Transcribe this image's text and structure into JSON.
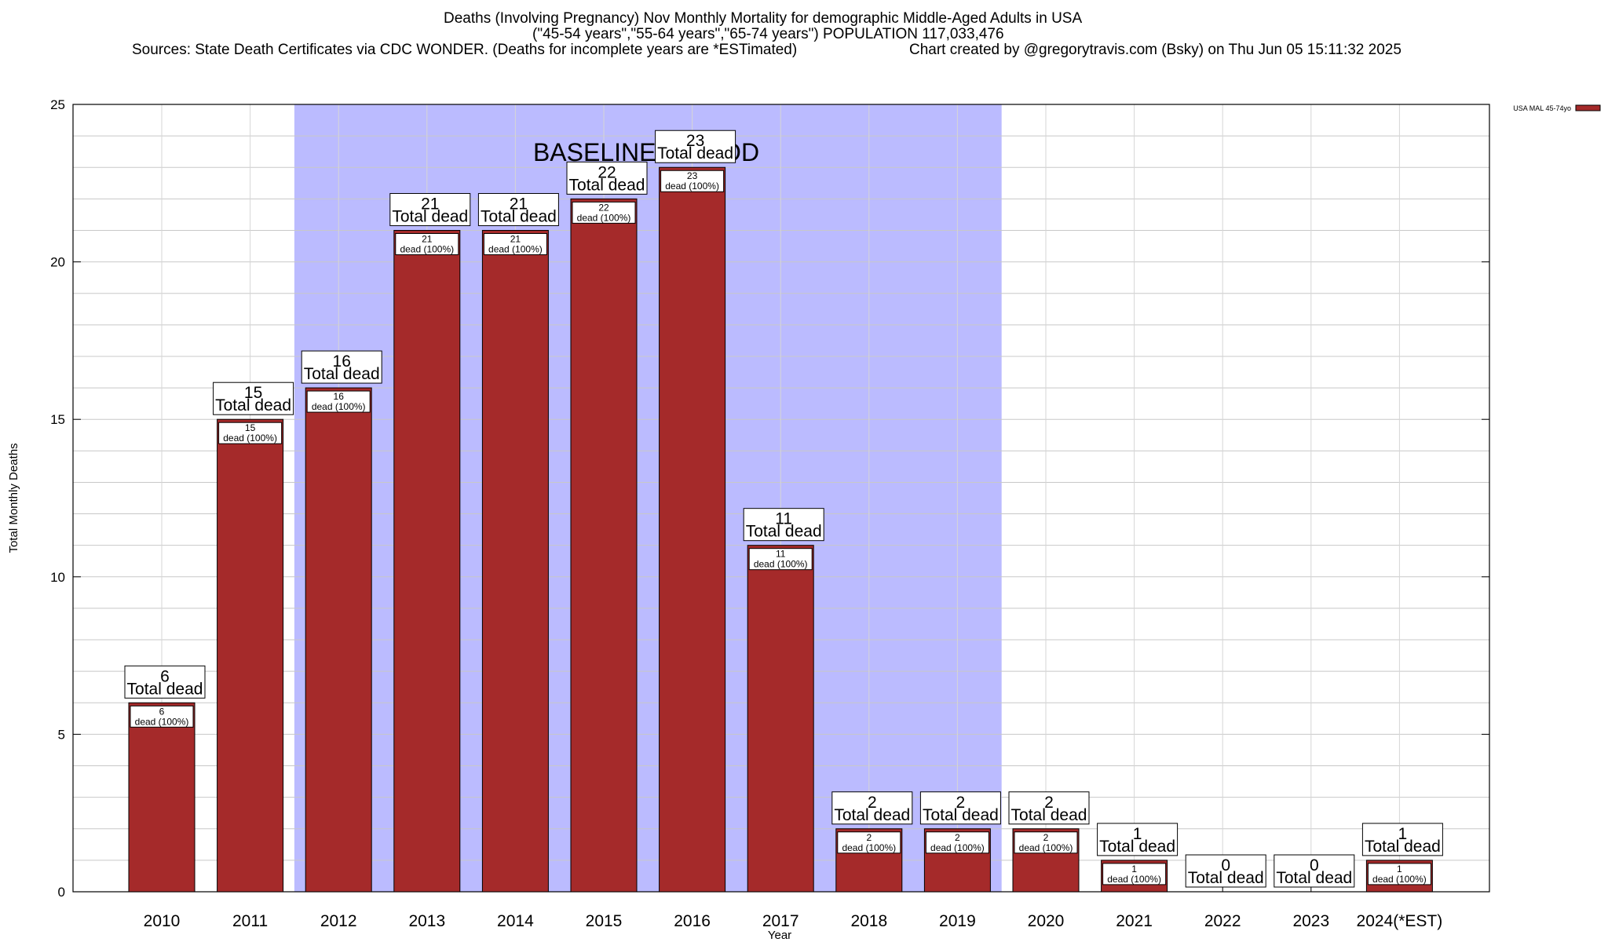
{
  "chart_data": {
    "type": "bar",
    "title": "Deaths (Involving Pregnancy) Nov Monthly Mortality for demographic Middle-Aged Adults in USA",
    "subtitle": "(\"45-54 years\",\"55-64 years\",\"65-74 years\") POPULATION 117,033,476",
    "sources": "Sources: State Death Certificates via CDC WONDER. (Deaths for incomplete years are *ESTimated)",
    "credit": "Chart created by @gregorytravis.com (Bsky) on Thu Jun 05 15:11:32 2025",
    "xlabel": "Year",
    "ylabel": "Total Monthly Deaths",
    "ylim": [
      0,
      25
    ],
    "yticks": [
      0,
      5,
      10,
      15,
      20,
      25
    ],
    "grid": true,
    "categories": [
      "2010",
      "2011",
      "2012",
      "2013",
      "2014",
      "2015",
      "2016",
      "2017",
      "2018",
      "2019",
      "2020",
      "2021",
      "2022",
      "2023",
      "2024(*EST)"
    ],
    "series": [
      {
        "name": "USA MAL 45-74yo",
        "color": "#a52a2a",
        "values": [
          6,
          15,
          16,
          21,
          21,
          22,
          23,
          11,
          2,
          2,
          2,
          1,
          0,
          0,
          1
        ]
      }
    ],
    "total_label": "Total dead",
    "inner_label": "dead (100%)",
    "baseline": {
      "label": "BASELINE PERIOD",
      "from": "2012",
      "to": "2019",
      "color": "#bbbbff"
    },
    "legend_position": "top-right"
  }
}
